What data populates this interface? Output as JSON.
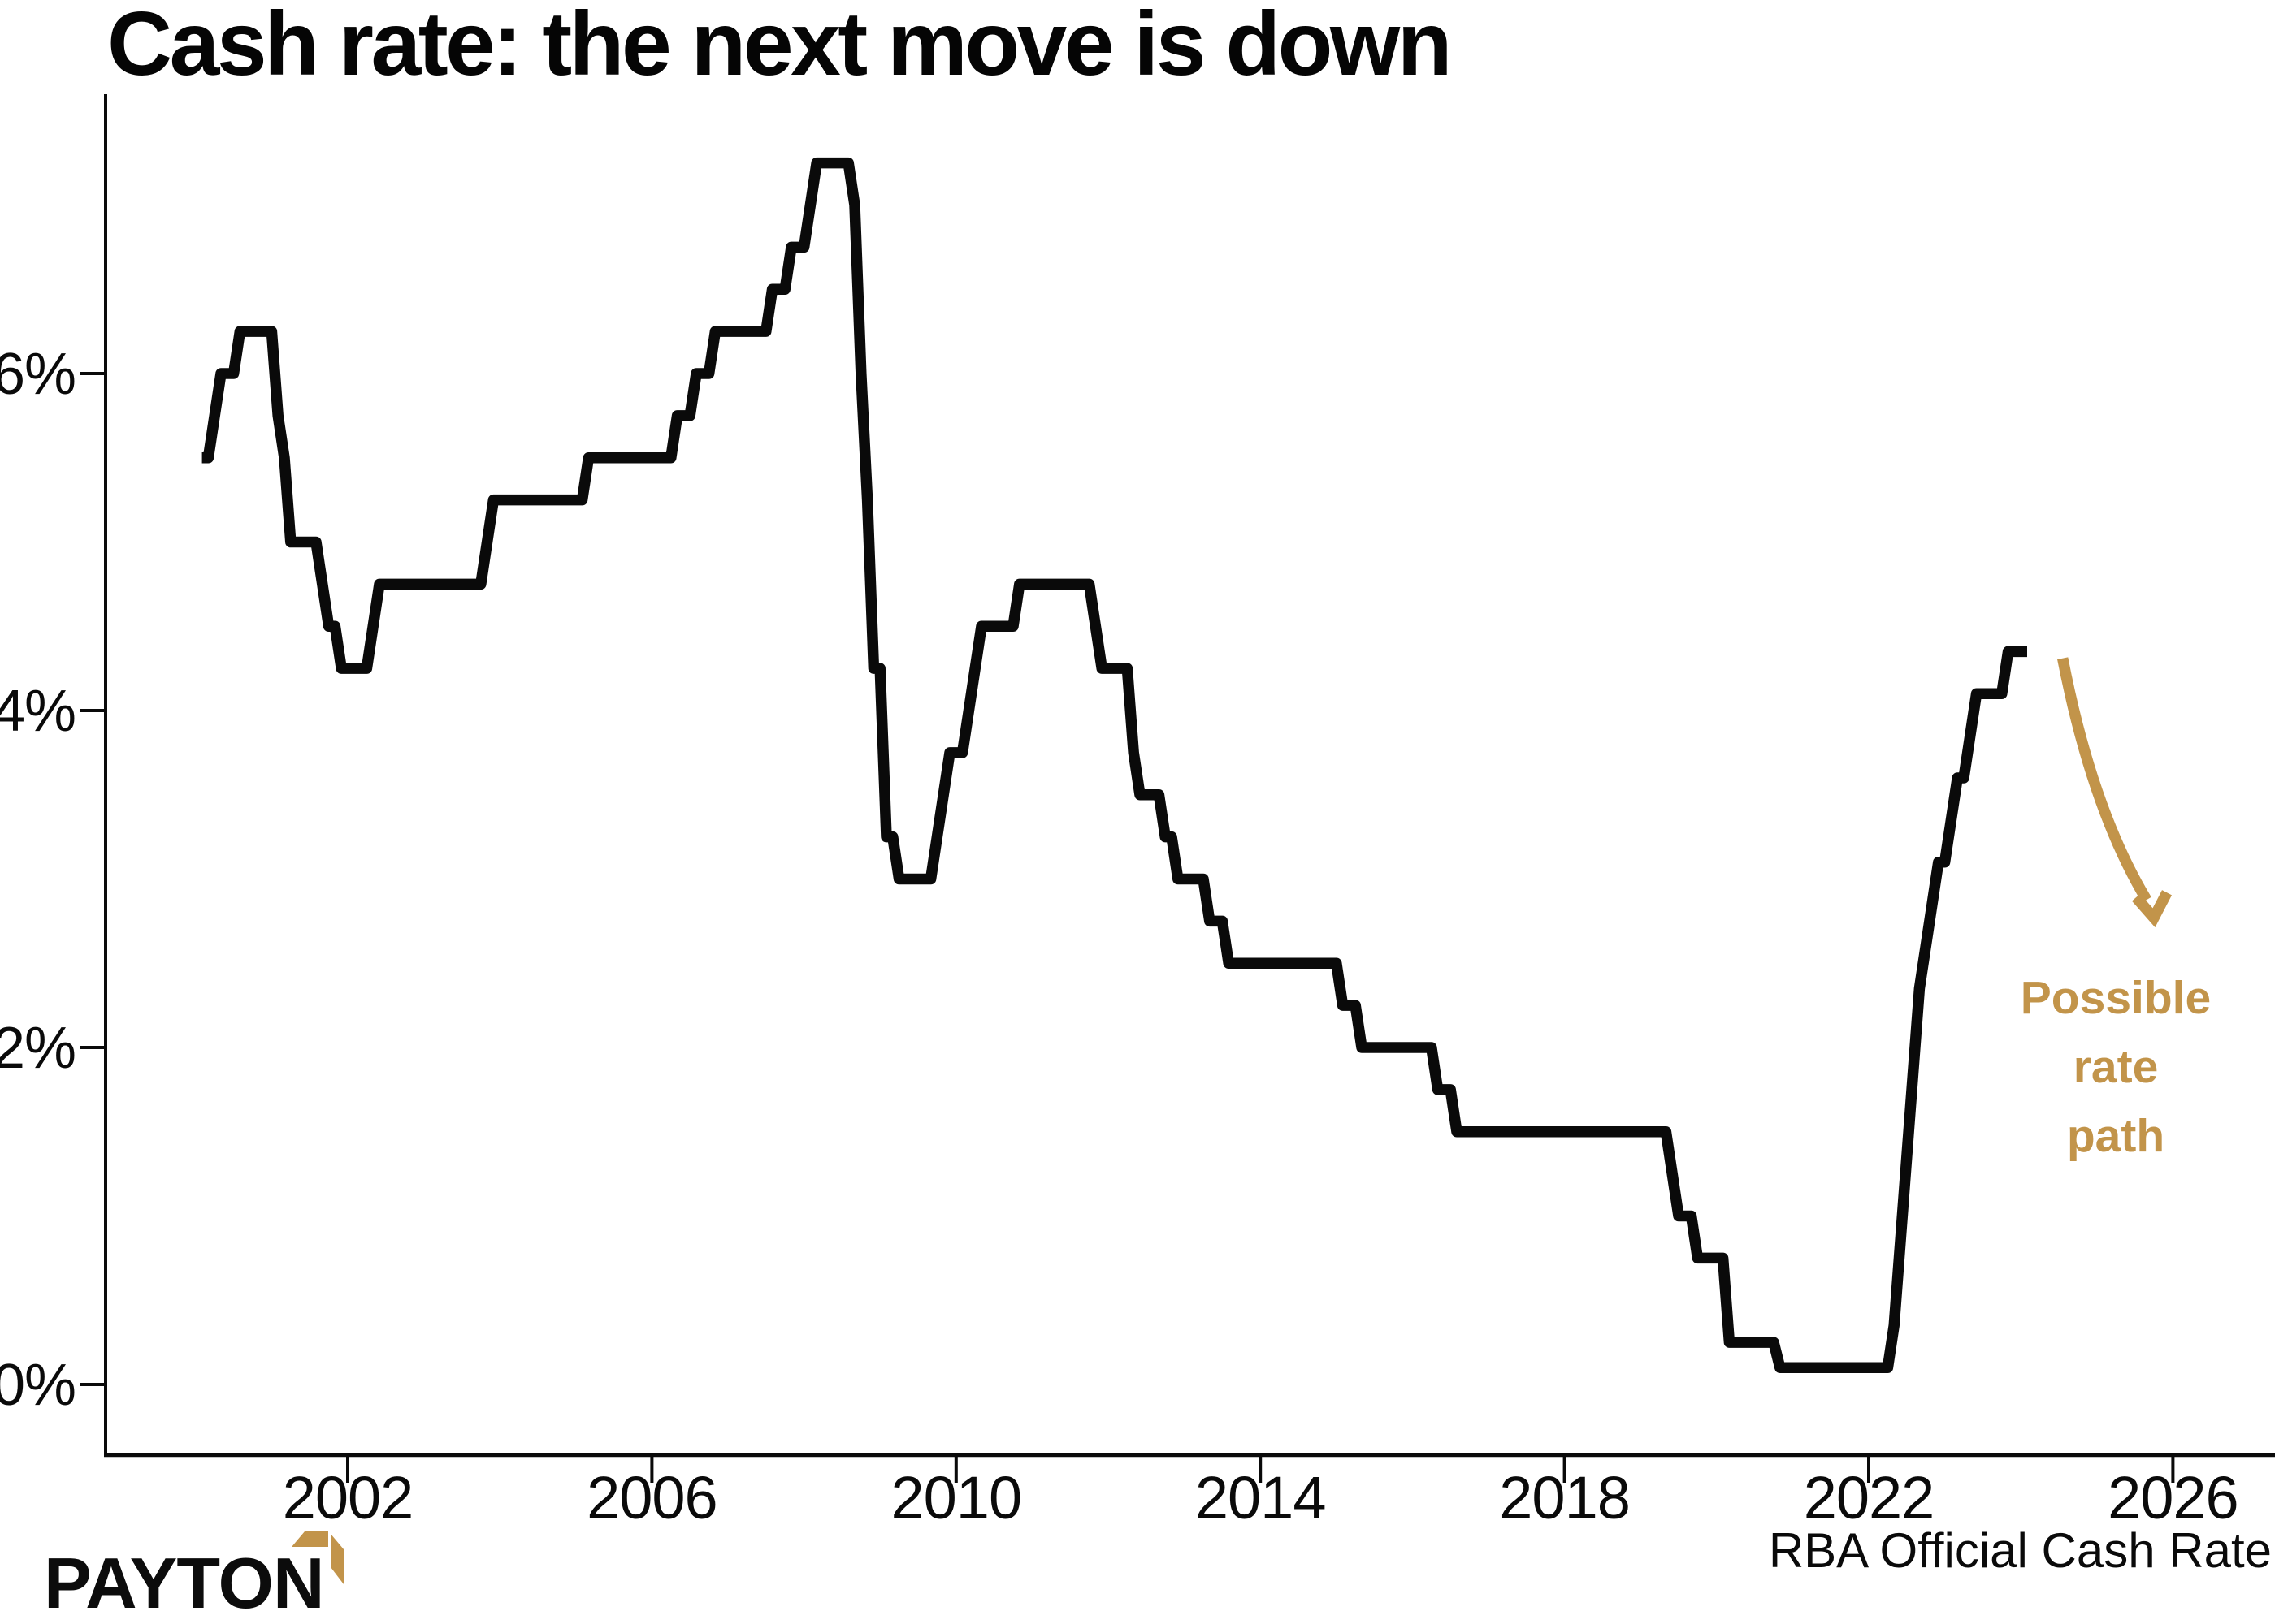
{
  "title": "Cash rate: the next move is down",
  "annotation": {
    "line1": "Possible",
    "line2": "rate",
    "line3": "path"
  },
  "footer": {
    "series_label": "RBA Official Cash Rate",
    "brand": "PAYTON"
  },
  "colors": {
    "accent_gold": "#C2944A",
    "line_black": "#0A0A0A"
  },
  "chart_data": {
    "type": "line",
    "title": "Cash rate: the next move is down",
    "series_name": "RBA Official Cash Rate",
    "unit": "percent",
    "grid": false,
    "legend_position": "none",
    "x_ticks": [
      2002,
      2006,
      2010,
      2014,
      2018,
      2022,
      2026
    ],
    "x_tick_labels": [
      "2002",
      "2006",
      "2010",
      "2014",
      "2018",
      "2022",
      "2026"
    ],
    "y_ticks": [
      0,
      2,
      4,
      6
    ],
    "y_tick_labels": [
      "0%",
      "2%",
      "4%",
      "6%"
    ],
    "x_range": [
      1998.8,
      2027.3
    ],
    "y_range": [
      -0.42,
      7.65
    ],
    "series_start": "2000-02",
    "series_end": "2024-02",
    "rate_changes": [
      [
        "2000-02",
        5.5
      ],
      [
        "2000-04",
        5.75
      ],
      [
        "2000-05",
        6.0
      ],
      [
        "2000-08",
        6.25
      ],
      [
        "2001-02",
        5.75
      ],
      [
        "2001-03",
        5.5
      ],
      [
        "2001-04",
        5.0
      ],
      [
        "2001-09",
        4.75
      ],
      [
        "2001-10",
        4.5
      ],
      [
        "2001-12",
        4.25
      ],
      [
        "2002-05",
        4.5
      ],
      [
        "2002-06",
        4.75
      ],
      [
        "2003-11",
        5.0
      ],
      [
        "2003-12",
        5.25
      ],
      [
        "2005-03",
        5.5
      ],
      [
        "2006-05",
        5.75
      ],
      [
        "2006-08",
        6.0
      ],
      [
        "2006-11",
        6.25
      ],
      [
        "2007-08",
        6.5
      ],
      [
        "2007-11",
        6.75
      ],
      [
        "2008-02",
        7.0
      ],
      [
        "2008-03",
        7.25
      ],
      [
        "2008-09",
        7.0
      ],
      [
        "2008-10",
        6.0
      ],
      [
        "2008-11",
        5.25
      ],
      [
        "2008-12",
        4.25
      ],
      [
        "2009-02",
        3.25
      ],
      [
        "2009-04",
        3.0
      ],
      [
        "2009-10",
        3.25
      ],
      [
        "2009-11",
        3.5
      ],
      [
        "2009-12",
        3.75
      ],
      [
        "2010-03",
        4.0
      ],
      [
        "2010-04",
        4.25
      ],
      [
        "2010-05",
        4.5
      ],
      [
        "2010-11",
        4.75
      ],
      [
        "2011-11",
        4.5
      ],
      [
        "2011-12",
        4.25
      ],
      [
        "2012-05",
        3.75
      ],
      [
        "2012-06",
        3.5
      ],
      [
        "2012-10",
        3.25
      ],
      [
        "2012-12",
        3.0
      ],
      [
        "2013-05",
        2.75
      ],
      [
        "2013-08",
        2.5
      ],
      [
        "2015-02",
        2.25
      ],
      [
        "2015-05",
        2.0
      ],
      [
        "2016-05",
        1.75
      ],
      [
        "2016-08",
        1.5
      ],
      [
        "2019-06",
        1.25
      ],
      [
        "2019-07",
        1.0
      ],
      [
        "2019-10",
        0.75
      ],
      [
        "2020-03",
        0.25
      ],
      [
        "2020-11",
        0.1
      ],
      [
        "2022-05",
        0.35
      ],
      [
        "2022-06",
        0.85
      ],
      [
        "2022-07",
        1.35
      ],
      [
        "2022-08",
        1.85
      ],
      [
        "2022-09",
        2.35
      ],
      [
        "2022-10",
        2.6
      ],
      [
        "2022-11",
        2.85
      ],
      [
        "2022-12",
        3.1
      ],
      [
        "2023-02",
        3.35
      ],
      [
        "2023-03",
        3.6
      ],
      [
        "2023-05",
        3.85
      ],
      [
        "2023-06",
        4.1
      ],
      [
        "2023-11",
        4.35
      ]
    ],
    "annotation_arrow": {
      "from": [
        2024.55,
        4.31
      ],
      "to": [
        2025.75,
        2.77
      ]
    }
  }
}
